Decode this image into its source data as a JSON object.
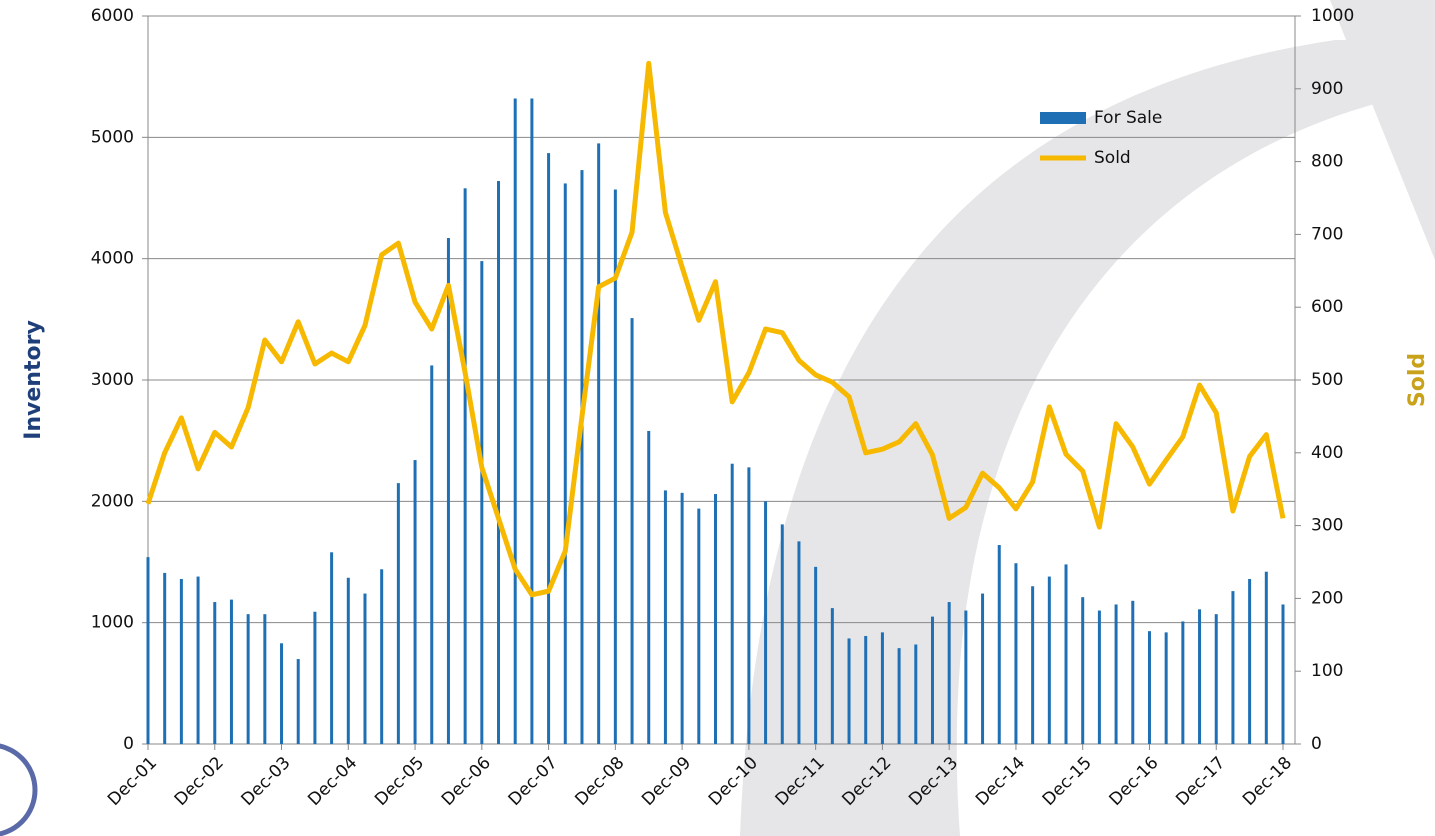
{
  "chart_data": {
    "type": "bar-line",
    "categories": [
      "Dec-01",
      null,
      null,
      null,
      "Dec-02",
      null,
      null,
      null,
      "Dec-03",
      null,
      null,
      null,
      "Dec-04",
      null,
      null,
      null,
      "Dec-05",
      null,
      null,
      null,
      "Dec-06",
      null,
      null,
      null,
      "Dec-07",
      null,
      null,
      null,
      "Dec-08",
      null,
      null,
      null,
      "Dec-09",
      null,
      null,
      null,
      "Dec-10",
      null,
      null,
      null,
      "Dec-11",
      null,
      null,
      null,
      "Dec-12",
      null,
      null,
      null,
      "Dec-13",
      null,
      null,
      null,
      "Dec-14",
      null,
      null,
      null,
      "Dec-15",
      null,
      null,
      null,
      "Dec-16",
      null,
      null,
      null,
      "Dec-17",
      null,
      null,
      null,
      "Dec-18"
    ],
    "series": [
      {
        "name": "For Sale",
        "type": "bar",
        "color": "#1f6fb5",
        "values": [
          1540,
          1410,
          1360,
          1380,
          1170,
          1190,
          1070,
          1070,
          830,
          700,
          1090,
          1580,
          1370,
          1240,
          1440,
          2150,
          2340,
          3120,
          4170,
          4580,
          3980,
          4640,
          5320,
          5320,
          4870,
          4620,
          4730,
          4950,
          4570,
          3510,
          2580,
          2090,
          2070,
          1940,
          2060,
          2310,
          2280,
          2000,
          1810,
          1670,
          1460,
          1120,
          870,
          890,
          920,
          790,
          820,
          1050,
          1170,
          1100,
          1240,
          1640,
          1490,
          1300,
          1380,
          1480,
          1210,
          1100,
          1150,
          1180,
          930,
          920,
          1010,
          1110,
          1070,
          1260,
          1360,
          1420,
          1150
        ]
      },
      {
        "name": "Sold",
        "type": "line",
        "axis": "y2",
        "color": "#f7b800",
        "values": [
          330,
          400,
          448,
          378,
          428,
          408,
          462,
          555,
          525,
          580,
          522,
          537,
          525,
          575,
          672,
          688,
          607,
          570,
          630,
          510,
          380,
          310,
          240,
          205,
          210,
          265,
          450,
          628,
          640,
          703,
          935,
          730,
          655,
          582,
          635,
          470,
          510,
          570,
          565,
          527,
          507,
          497,
          477,
          400,
          405,
          415,
          440,
          397,
          310,
          325,
          372,
          352,
          323,
          360,
          463,
          398,
          375,
          298,
          440,
          408,
          357,
          390,
          422,
          493,
          455,
          320,
          395,
          425,
          310
        ]
      }
    ],
    "y_label": "Inventory",
    "y2_label": "Sold",
    "ylim": [
      0,
      6000
    ],
    "yticks": [
      0,
      1000,
      2000,
      3000,
      4000,
      5000,
      6000
    ],
    "y2lim": [
      0,
      1000
    ],
    "y2ticks": [
      0,
      100,
      200,
      300,
      400,
      500,
      600,
      700,
      800,
      900,
      1000
    ],
    "grid": true,
    "legend": "upper right"
  }
}
